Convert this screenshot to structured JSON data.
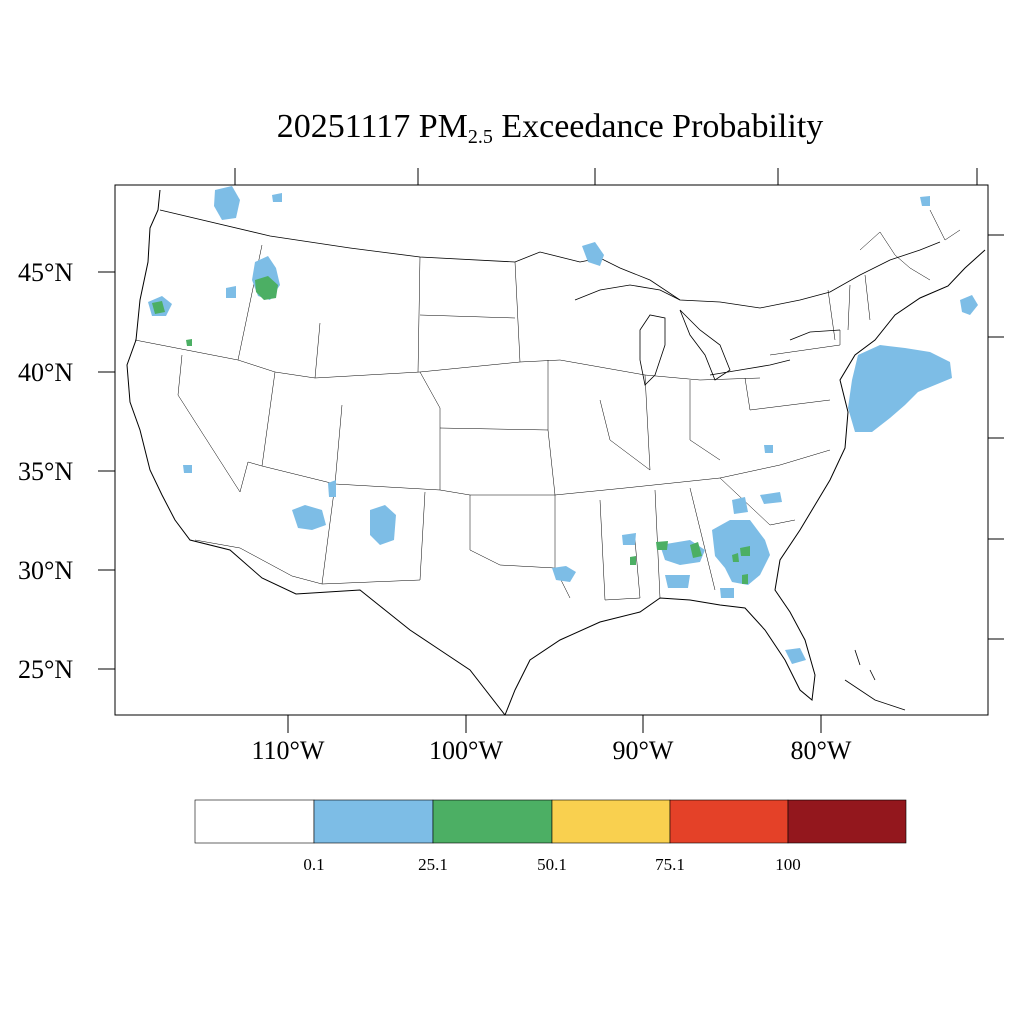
{
  "title": {
    "prefix": "20251117 PM",
    "subscript": "2.5",
    "suffix": " Exceedance Probability"
  },
  "axes": {
    "lat_labels": [
      "45°N",
      "40°N",
      "35°N",
      "30°N",
      "25°N"
    ],
    "lon_labels": [
      "110°W",
      "100°W",
      "90°W",
      "80°W"
    ]
  },
  "legend": {
    "colors": [
      "#ffffff",
      "#7dbde6",
      "#4caf64",
      "#f9d04f",
      "#e44128",
      "#93171d"
    ],
    "labels": [
      "0.1",
      "25.1",
      "50.1",
      "75.1",
      "100"
    ]
  },
  "probability_colors": {
    "low": "#7dbde6",
    "medium": "#4caf64"
  }
}
